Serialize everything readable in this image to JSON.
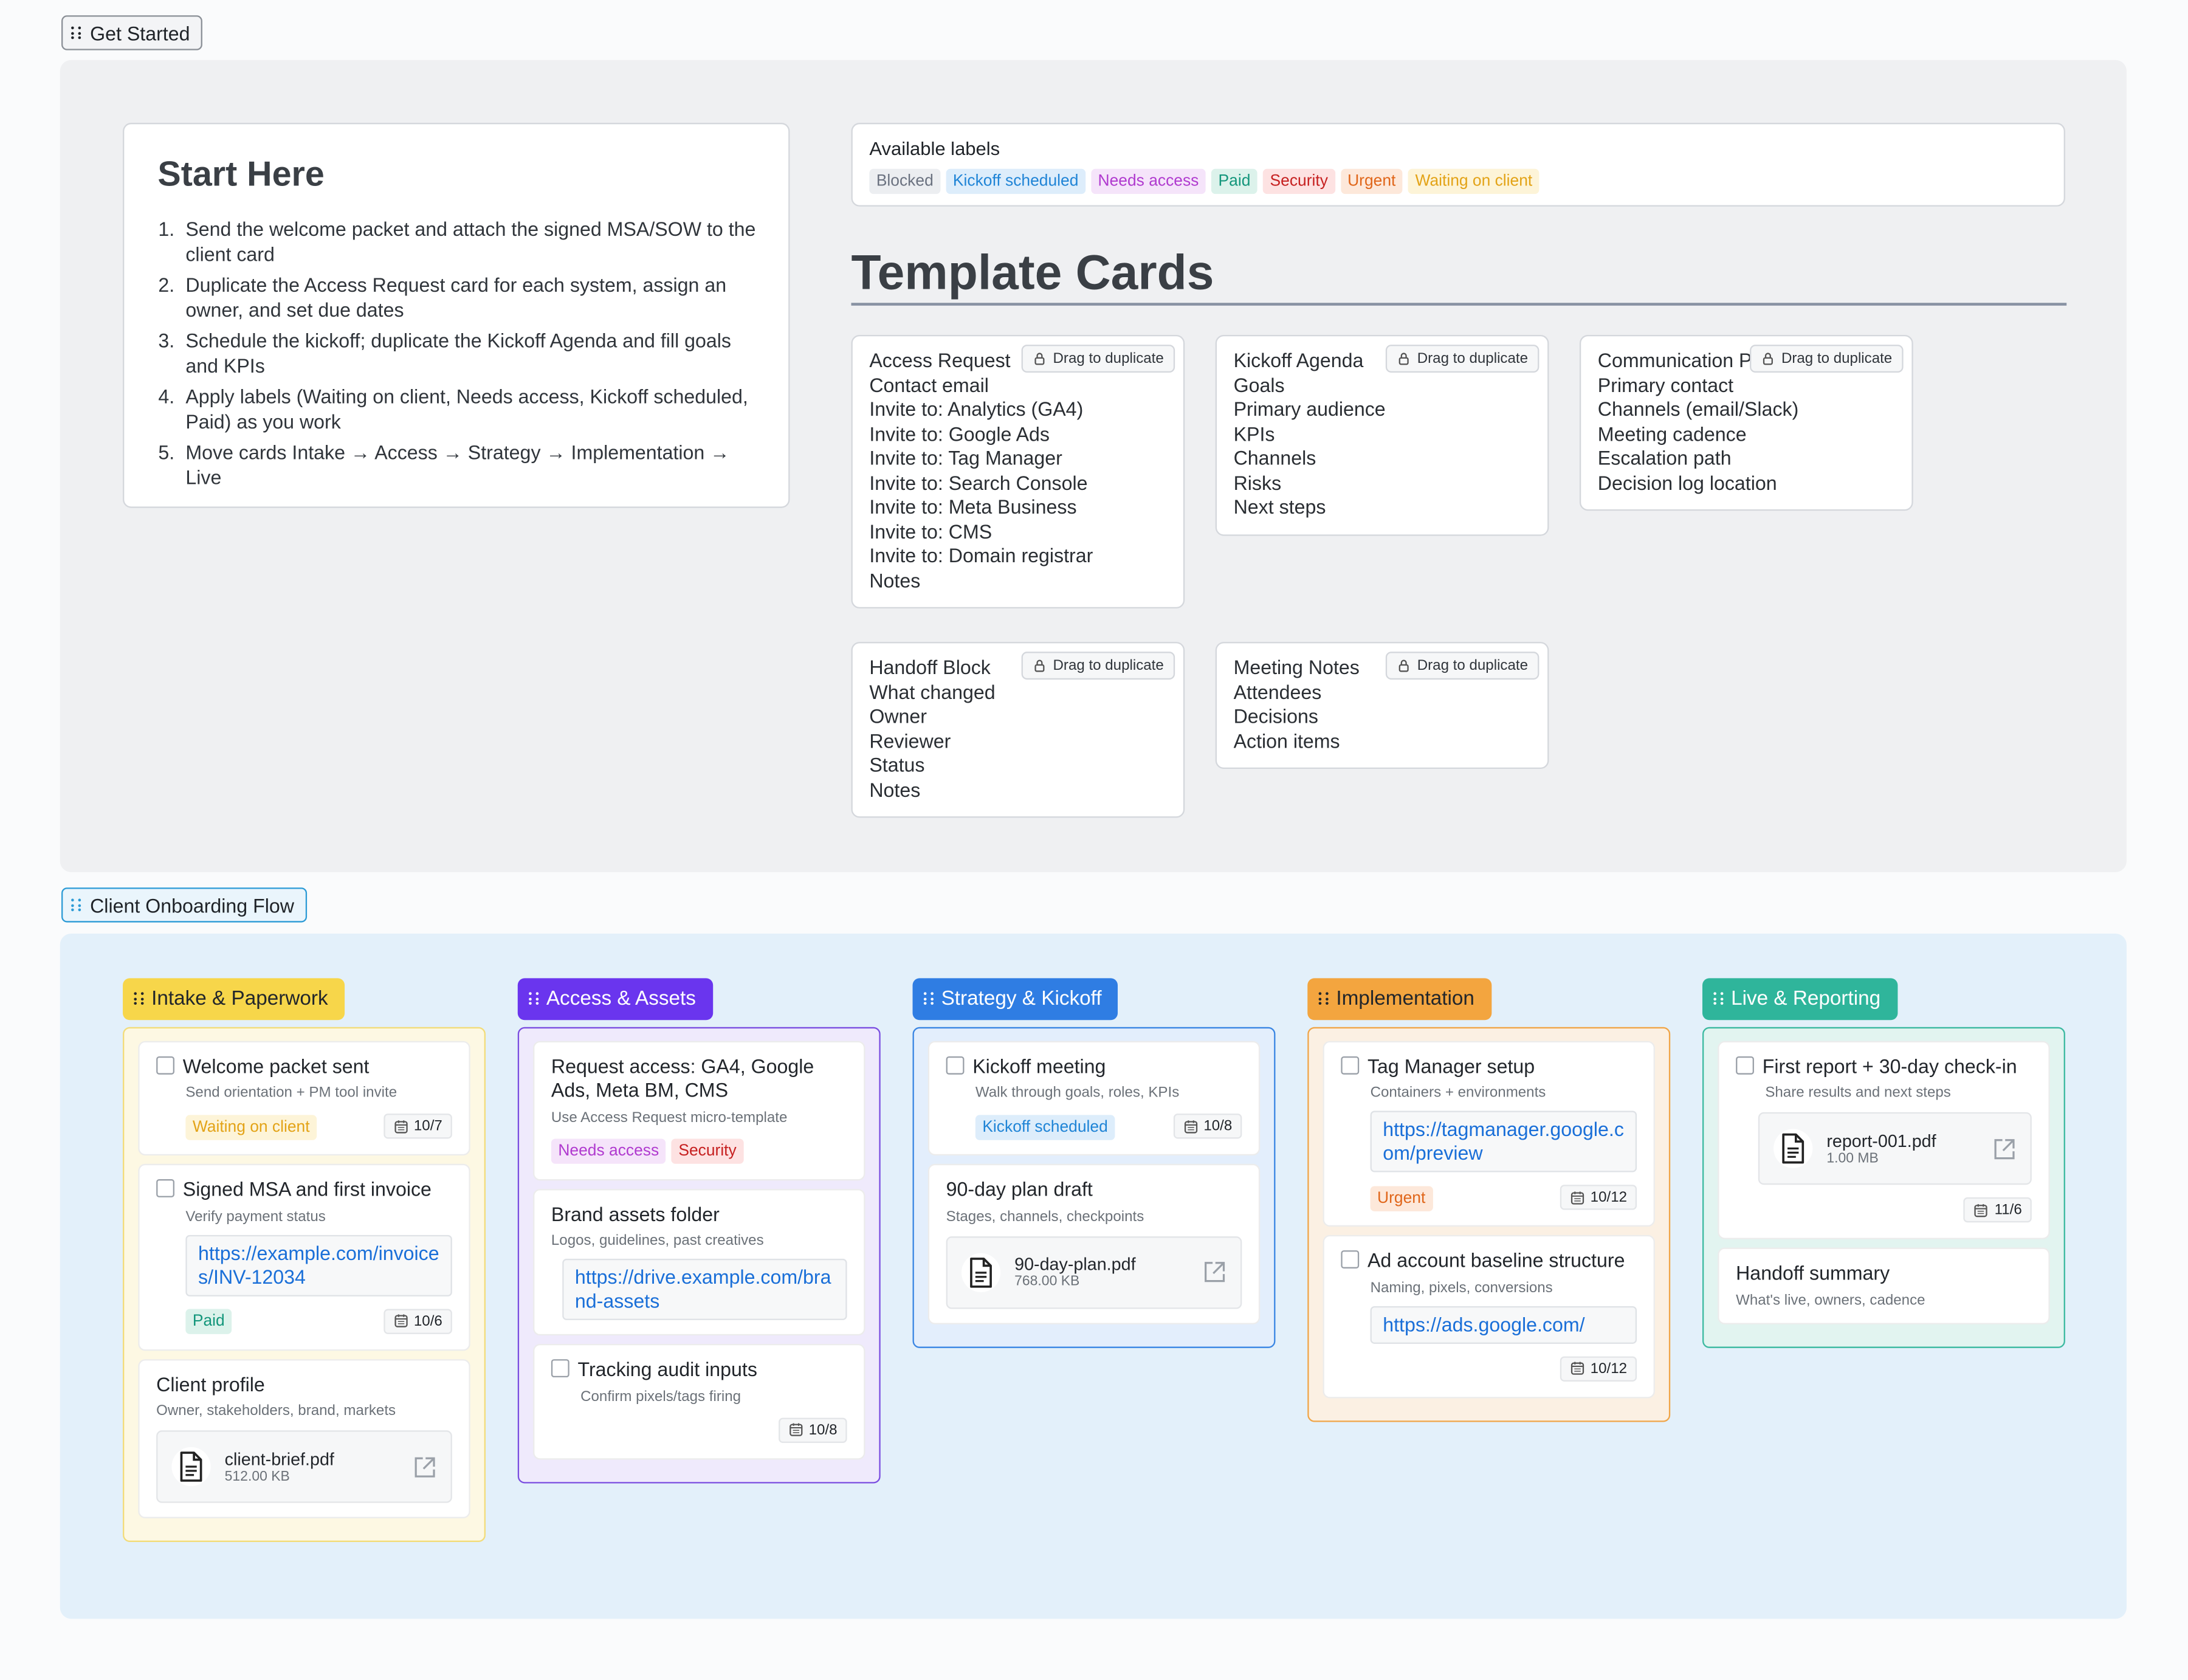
{
  "get_started": {
    "tag": "Get Started",
    "start_here": {
      "title": "Start Here",
      "steps": [
        "Send the welcome packet and attach the signed MSA/SOW to the client card",
        "Duplicate the Access Request card for each system, assign an owner, and set due dates",
        "Schedule the kickoff; duplicate the Kickoff Agenda and fill goals and KPIs",
        "Apply labels (Waiting on client, Needs access, Kickoff scheduled, Paid) as you work",
        "Move cards Intake → Access → Strategy → Implementation → Live"
      ]
    },
    "labels": {
      "title": "Available labels",
      "items": [
        {
          "name": "Blocked",
          "color": "#6b7280",
          "bg": "#eceef1"
        },
        {
          "name": "Kickoff scheduled",
          "color": "#1f84d6",
          "bg": "#ddedfb"
        },
        {
          "name": "Needs access",
          "color": "#b03acf",
          "bg": "#f5e4fa"
        },
        {
          "name": "Paid",
          "color": "#13967b",
          "bg": "#dcf2eb"
        },
        {
          "name": "Security",
          "color": "#c62020",
          "bg": "#fde2e2"
        },
        {
          "name": "Urgent",
          "color": "#e0661a",
          "bg": "#fde8da"
        },
        {
          "name": "Waiting on client",
          "color": "#e3a317",
          "bg": "#fdf4d8"
        }
      ]
    },
    "templates_title": "Template Cards",
    "drag_hint": "Drag to duplicate",
    "templates": [
      {
        "title": "Access Request",
        "lines": [
          "Contact email",
          "Invite to: Analytics (GA4)",
          "Invite to: Google Ads",
          "Invite to: Tag Manager",
          "Invite to: Search Console",
          "Invite to: Meta Business",
          "Invite to: CMS",
          "Invite to: Domain registrar",
          "Notes"
        ]
      },
      {
        "title": "Kickoff Agenda",
        "lines": [
          "Goals",
          "Primary audience",
          "KPIs",
          "Channels",
          "Risks",
          "Next steps"
        ]
      },
      {
        "title": "Communication Plan",
        "lines": [
          "Primary contact",
          "Channels (email/Slack)",
          "Meeting cadence",
          "Escalation path",
          "Decision log location"
        ]
      },
      {
        "title": "Handoff Block",
        "lines": [
          "What changed",
          "Owner",
          "Reviewer",
          "Status",
          "Notes"
        ]
      },
      {
        "title": "Meeting Notes",
        "lines": [
          "Attendees",
          "Decisions",
          "Action items"
        ]
      }
    ]
  },
  "flow": {
    "tag": "Client Onboarding Flow",
    "columns": [
      {
        "title": "Intake & Paperwork",
        "color": "#f7d64a",
        "text_color": "#22262b",
        "border": "#f2dc7a",
        "bg": "#fdf8e3",
        "cards": [
          {
            "checkbox": true,
            "title": "Welcome packet sent",
            "subtitle": "Send orientation + PM tool invite",
            "labels": [
              "Waiting on client"
            ],
            "date": "10/7"
          },
          {
            "checkbox": true,
            "title": "Signed MSA and first invoice",
            "subtitle": "Verify payment status",
            "link": "https://example.com/invoices/INV-12034",
            "labels": [
              "Paid"
            ],
            "date": "10/6"
          },
          {
            "checkbox": false,
            "title": "Client profile",
            "subtitle": "Owner, stakeholders, brand, markets",
            "file": {
              "name": "client-brief.pdf",
              "size": "512.00 KB"
            }
          }
        ]
      },
      {
        "title": "Access & Assets",
        "color": "#6a35ee",
        "text_color": "#ffffff",
        "border": "#7b4fe0",
        "bg": "#efeafc",
        "cards": [
          {
            "checkbox": false,
            "title": "Request access: GA4, Google Ads, Meta BM, CMS",
            "subtitle": "Use Access Request micro-template",
            "labels": [
              "Needs access",
              "Security"
            ]
          },
          {
            "checkbox": false,
            "title": "Brand assets folder",
            "subtitle": "Logos, guidelines, past creatives",
            "link": "https://drive.example.com/brand-assets"
          },
          {
            "checkbox": true,
            "title": "Tracking audit inputs",
            "subtitle": "Confirm pixels/tags firing",
            "date": "10/8"
          }
        ]
      },
      {
        "title": "Strategy & Kickoff",
        "color": "#2f7de3",
        "text_color": "#ffffff",
        "border": "#3a86e3",
        "bg": "#e3eefc",
        "cards": [
          {
            "checkbox": true,
            "title": "Kickoff meeting",
            "subtitle": "Walk through goals, roles, KPIs",
            "labels": [
              "Kickoff scheduled"
            ],
            "date": "10/8"
          },
          {
            "checkbox": false,
            "title": "90-day plan draft",
            "subtitle": "Stages, channels, checkpoints",
            "file": {
              "name": "90-day-plan.pdf",
              "size": "768.00 KB"
            }
          }
        ]
      },
      {
        "title": "Implementation",
        "color": "#f3a53f",
        "text_color": "#22262b",
        "border": "#f0a548",
        "bg": "#fbf0e3",
        "cards": [
          {
            "checkbox": true,
            "title": "Tag Manager setup",
            "subtitle": "Containers + environments",
            "link": "https://tagmanager.google.com/preview",
            "labels": [
              "Urgent"
            ],
            "date": "10/12"
          },
          {
            "checkbox": true,
            "title": "Ad account baseline structure",
            "subtitle": "Naming, pixels, conversions",
            "link": "https://ads.google.com/",
            "date": "10/12"
          }
        ]
      },
      {
        "title": "Live & Reporting",
        "color": "#2fb59b",
        "text_color": "#ffffff",
        "border": "#3bb9a0",
        "bg": "#e2f4f0",
        "cards": [
          {
            "checkbox": true,
            "title": "First report + 30-day check-in",
            "subtitle": "Share results and next steps",
            "file": {
              "name": "report-001.pdf",
              "size": "1.00 MB"
            },
            "date": "11/6"
          },
          {
            "checkbox": false,
            "title": "Handoff summary",
            "subtitle": "What's live, owners, cadence"
          }
        ]
      }
    ]
  }
}
